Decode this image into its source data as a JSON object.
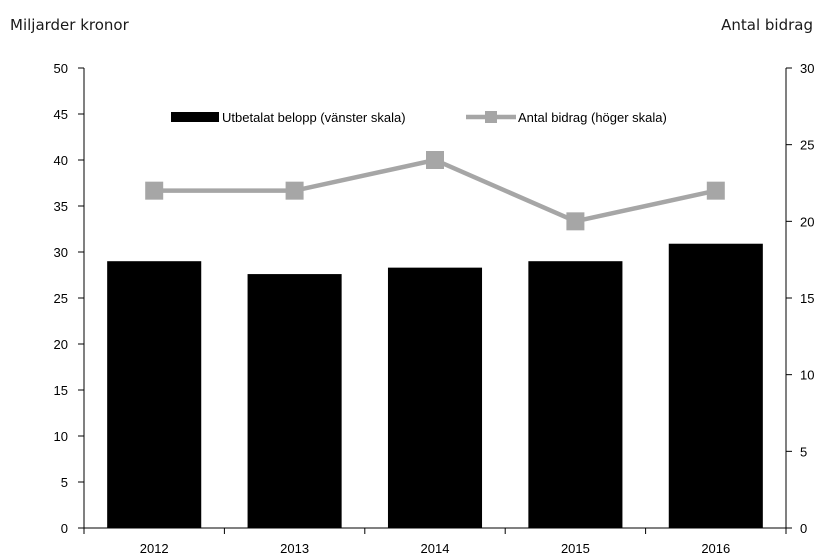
{
  "chart_data": {
    "type": "bar",
    "categories": [
      "2012",
      "2013",
      "2014",
      "2015",
      "2016"
    ],
    "series": [
      {
        "name": "Utbetalat belopp (vänster skala)",
        "type": "bar",
        "axis": "left",
        "values": [
          29.0,
          27.6,
          28.3,
          29.0,
          30.9
        ],
        "color": "#000000"
      },
      {
        "name": "Antal bidrag (höger skala)",
        "type": "line",
        "axis": "right",
        "values": [
          22,
          22,
          24,
          20,
          22
        ],
        "color": "#a6a6a6"
      }
    ],
    "ylabel_left": "Miljarder kronor",
    "ylabel_right": "Antal bidrag",
    "ylim_left": [
      0,
      50
    ],
    "ylim_right": [
      0,
      30
    ],
    "yticks_left": [
      0,
      5,
      10,
      15,
      20,
      25,
      30,
      35,
      40,
      45,
      50
    ],
    "yticks_right": [
      0,
      5,
      10,
      15,
      20,
      25,
      30
    ],
    "grid": false,
    "legend_position": "top"
  }
}
